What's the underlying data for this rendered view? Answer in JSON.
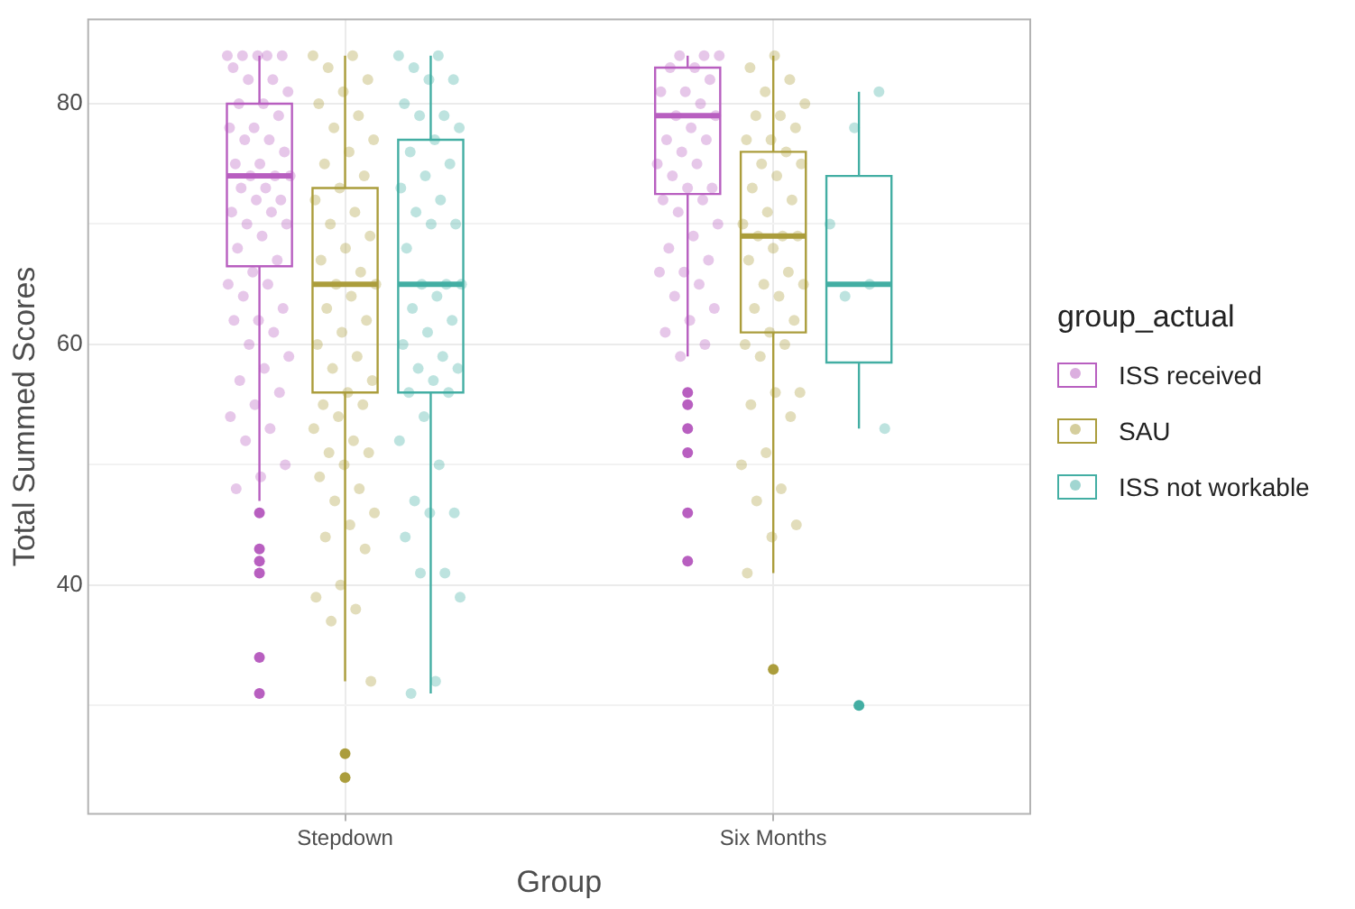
{
  "chart_data": {
    "type": "box",
    "xlabel": "Group",
    "ylabel": "Total Summed Scores",
    "legend_title": "group_actual",
    "legend": "right",
    "grid": true,
    "categories": [
      "Stepdown",
      "Six Months"
    ],
    "ylim": [
      21,
      87
    ],
    "yticks": [
      {
        "value": 30,
        "label": null
      },
      40,
      {
        "value": 50,
        "label": null
      },
      60,
      {
        "value": 70,
        "label": null
      },
      80
    ],
    "series": [
      {
        "name": "ISS received",
        "color": "#b85fc0",
        "boxes": [
          {
            "low": 47,
            "q1": 66.5,
            "median": 74,
            "q3": 80,
            "high": 84,
            "outliers": [
              46,
              43,
              42,
              41,
              34,
              31
            ]
          },
          {
            "low": 59,
            "q1": 72.5,
            "median": 79,
            "q3": 83,
            "high": 84,
            "outliers": [
              56,
              55,
              53,
              51,
              46,
              42
            ]
          }
        ]
      },
      {
        "name": "SAU",
        "color": "#ab9d3c",
        "boxes": [
          {
            "low": 32,
            "q1": 56,
            "median": 65,
            "q3": 73,
            "high": 84,
            "outliers": [
              26,
              24
            ]
          },
          {
            "low": 41,
            "q1": 61,
            "median": 69,
            "q3": 76,
            "high": 84,
            "outliers": [
              33
            ]
          }
        ]
      },
      {
        "name": "ISS not workable",
        "color": "#43aea3",
        "boxes": [
          {
            "low": 31,
            "q1": 56,
            "median": 65,
            "q3": 77,
            "high": 84
          },
          {
            "low": 53,
            "q1": 58.5,
            "median": 65,
            "q3": 74,
            "high": 81,
            "outliers": [
              30
            ]
          }
        ]
      },
      {
        "type": "scatter",
        "color": "#b85fc0",
        "x": [
          "Stepdown",
          "Stepdown",
          "Stepdown",
          "Stepdown",
          "Stepdown",
          "Stepdown",
          "Stepdown",
          "Stepdown",
          "Stepdown",
          "Stepdown",
          "Stepdown",
          "Stepdown",
          "Stepdown",
          "Stepdown",
          "Stepdown",
          "Stepdown",
          "Stepdown",
          "Stepdown",
          "Stepdown",
          "Stepdown",
          "Stepdown",
          "Stepdown",
          "Stepdown",
          "Stepdown",
          "Stepdown",
          "Stepdown",
          "Stepdown",
          "Stepdown",
          "Stepdown",
          "Stepdown",
          "Stepdown",
          "Stepdown",
          "Stepdown",
          "Stepdown",
          "Stepdown",
          "Stepdown",
          "Stepdown",
          "Stepdown",
          "Stepdown",
          "Stepdown",
          "Stepdown",
          "Stepdown",
          "Stepdown",
          "Stepdown",
          "Stepdown",
          "Stepdown",
          "Stepdown",
          "Stepdown",
          "Stepdown",
          "Stepdown",
          "Stepdown",
          "Stepdown",
          "Stepdown",
          "Six Months",
          "Six Months",
          "Six Months",
          "Six Months",
          "Six Months",
          "Six Months",
          "Six Months",
          "Six Months",
          "Six Months",
          "Six Months",
          "Six Months",
          "Six Months",
          "Six Months",
          "Six Months",
          "Six Months",
          "Six Months",
          "Six Months",
          "Six Months",
          "Six Months",
          "Six Months",
          "Six Months",
          "Six Months",
          "Six Months",
          "Six Months",
          "Six Months",
          "Six Months",
          "Six Months",
          "Six Months",
          "Six Months",
          "Six Months",
          "Six Months",
          "Six Months",
          "Six Months",
          "Six Months",
          "Six Months",
          "Six Months"
        ],
        "values": [
          84,
          84,
          84,
          84,
          84,
          83,
          82,
          82,
          81,
          80,
          80,
          79,
          78,
          78,
          77,
          77,
          76,
          75,
          75,
          74,
          74,
          74,
          73,
          73,
          72,
          72,
          71,
          71,
          70,
          70,
          69,
          68,
          67,
          66,
          65,
          65,
          64,
          63,
          62,
          62,
          61,
          60,
          59,
          58,
          57,
          56,
          55,
          54,
          53,
          52,
          50,
          49,
          48,
          84,
          84,
          84,
          83,
          83,
          82,
          81,
          81,
          80,
          79,
          79,
          78,
          77,
          77,
          76,
          75,
          75,
          74,
          73,
          73,
          72,
          72,
          71,
          70,
          69,
          68,
          67,
          66,
          66,
          65,
          64,
          63,
          62,
          61,
          60,
          59
        ]
      },
      {
        "type": "scatter",
        "color": "#ab9d3c",
        "x": [
          "Stepdown",
          "Stepdown",
          "Stepdown",
          "Stepdown",
          "Stepdown",
          "Stepdown",
          "Stepdown",
          "Stepdown",
          "Stepdown",
          "Stepdown",
          "Stepdown",
          "Stepdown",
          "Stepdown",
          "Stepdown",
          "Stepdown",
          "Stepdown",
          "Stepdown",
          "Stepdown",
          "Stepdown",
          "Stepdown",
          "Stepdown",
          "Stepdown",
          "Stepdown",
          "Stepdown",
          "Stepdown",
          "Stepdown",
          "Stepdown",
          "Stepdown",
          "Stepdown",
          "Stepdown",
          "Stepdown",
          "Stepdown",
          "Stepdown",
          "Stepdown",
          "Stepdown",
          "Stepdown",
          "Stepdown",
          "Stepdown",
          "Stepdown",
          "Stepdown",
          "Stepdown",
          "Stepdown",
          "Stepdown",
          "Stepdown",
          "Stepdown",
          "Stepdown",
          "Stepdown",
          "Stepdown",
          "Stepdown",
          "Stepdown",
          "Stepdown",
          "Six Months",
          "Six Months",
          "Six Months",
          "Six Months",
          "Six Months",
          "Six Months",
          "Six Months",
          "Six Months",
          "Six Months",
          "Six Months",
          "Six Months",
          "Six Months",
          "Six Months",
          "Six Months",
          "Six Months",
          "Six Months",
          "Six Months",
          "Six Months",
          "Six Months",
          "Six Months",
          "Six Months",
          "Six Months",
          "Six Months",
          "Six Months",
          "Six Months",
          "Six Months",
          "Six Months",
          "Six Months",
          "Six Months",
          "Six Months",
          "Six Months",
          "Six Months",
          "Six Months",
          "Six Months",
          "Six Months",
          "Six Months",
          "Six Months",
          "Six Months",
          "Six Months",
          "Six Months",
          "Six Months",
          "Six Months",
          "Six Months",
          "Six Months"
        ],
        "values": [
          84,
          84,
          83,
          82,
          81,
          80,
          79,
          78,
          77,
          76,
          75,
          74,
          73,
          72,
          71,
          70,
          69,
          68,
          67,
          66,
          65,
          65,
          64,
          63,
          62,
          61,
          60,
          59,
          58,
          57,
          56,
          55,
          55,
          54,
          53,
          52,
          51,
          51,
          50,
          49,
          48,
          47,
          46,
          45,
          44,
          43,
          40,
          39,
          38,
          37,
          32,
          84,
          83,
          82,
          81,
          80,
          79,
          79,
          78,
          77,
          77,
          76,
          75,
          75,
          74,
          73,
          72,
          71,
          70,
          69,
          69,
          69,
          68,
          67,
          66,
          65,
          65,
          64,
          63,
          62,
          61,
          60,
          60,
          59,
          56,
          56,
          55,
          54,
          51,
          50,
          48,
          47,
          45,
          44,
          41
        ]
      },
      {
        "type": "scatter",
        "color": "#43aea3",
        "x": [
          "Stepdown",
          "Stepdown",
          "Stepdown",
          "Stepdown",
          "Stepdown",
          "Stepdown",
          "Stepdown",
          "Stepdown",
          "Stepdown",
          "Stepdown",
          "Stepdown",
          "Stepdown",
          "Stepdown",
          "Stepdown",
          "Stepdown",
          "Stepdown",
          "Stepdown",
          "Stepdown",
          "Stepdown",
          "Stepdown",
          "Stepdown",
          "Stepdown",
          "Stepdown",
          "Stepdown",
          "Stepdown",
          "Stepdown",
          "Stepdown",
          "Stepdown",
          "Stepdown",
          "Stepdown",
          "Stepdown",
          "Stepdown",
          "Stepdown",
          "Stepdown",
          "Stepdown",
          "Stepdown",
          "Stepdown",
          "Stepdown",
          "Stepdown",
          "Stepdown",
          "Stepdown",
          "Stepdown",
          "Stepdown",
          "Stepdown",
          "Stepdown",
          "Six Months",
          "Six Months",
          "Six Months",
          "Six Months",
          "Six Months",
          "Six Months"
        ],
        "values": [
          84,
          84,
          83,
          82,
          82,
          80,
          79,
          79,
          78,
          77,
          76,
          75,
          74,
          73,
          72,
          71,
          70,
          70,
          68,
          65,
          65,
          65,
          64,
          63,
          62,
          61,
          60,
          59,
          58,
          58,
          57,
          56,
          56,
          54,
          52,
          50,
          47,
          46,
          46,
          44,
          41,
          41,
          39,
          32,
          31,
          81,
          78,
          70,
          65,
          64,
          53
        ]
      }
    ]
  }
}
